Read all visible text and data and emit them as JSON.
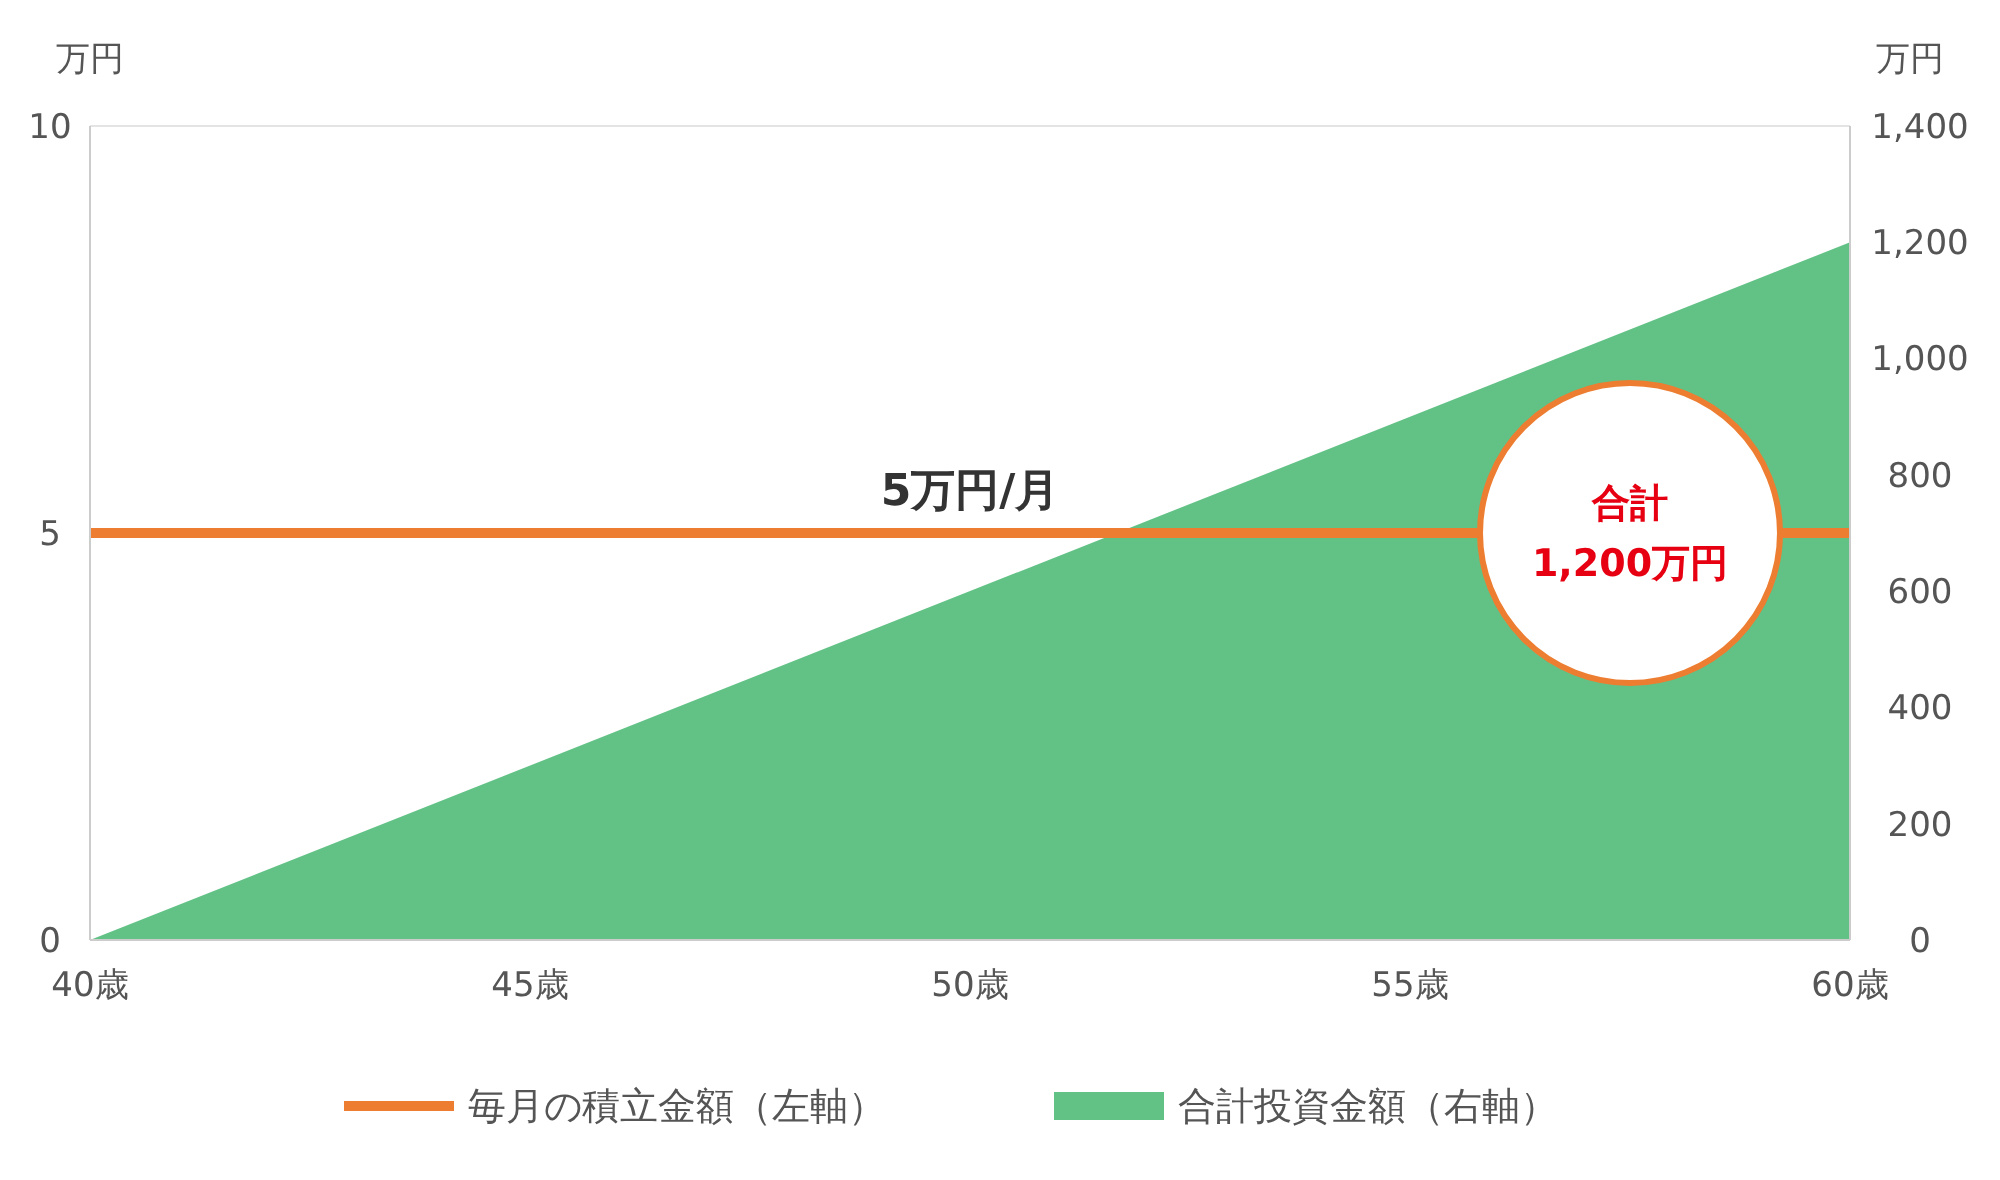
{
  "chart_data": {
    "type": "line",
    "ylabel": "万円",
    "y2label": "万円",
    "xlim": [
      40,
      60
    ],
    "xticks": [
      {
        "value": 40,
        "label": "40歳"
      },
      {
        "value": 45,
        "label": "45歳"
      },
      {
        "value": 50,
        "label": "50歳"
      },
      {
        "value": 55,
        "label": "55歳"
      },
      {
        "value": 60,
        "label": "60歳"
      }
    ],
    "ylim": [
      0,
      10
    ],
    "yticks": [
      0,
      5,
      10
    ],
    "y2lim": [
      0,
      1400
    ],
    "y2ticks": [
      0,
      200,
      400,
      600,
      800,
      {
        "value": 1000,
        "label": "1,000"
      },
      {
        "value": 1200,
        "label": "1,200"
      },
      {
        "value": 1400,
        "label": "1,400"
      }
    ],
    "series": [
      {
        "name": "毎月の積立金額（左軸）",
        "color": "#ed7d31",
        "values": [
          5,
          5
        ]
      },
      {
        "name": "合計投資金額（右軸）",
        "type": "area",
        "axis": "y2",
        "color": "#62c286",
        "values": [
          0,
          1200
        ]
      }
    ],
    "annotations": [
      {
        "text": "5万円/月",
        "x": 50,
        "y": 5
      },
      {
        "text": "合計\n1,200万円",
        "x": 57.5,
        "y": 5
      }
    ],
    "x": [
      40,
      60
    ],
    "legend": "bottom"
  }
}
